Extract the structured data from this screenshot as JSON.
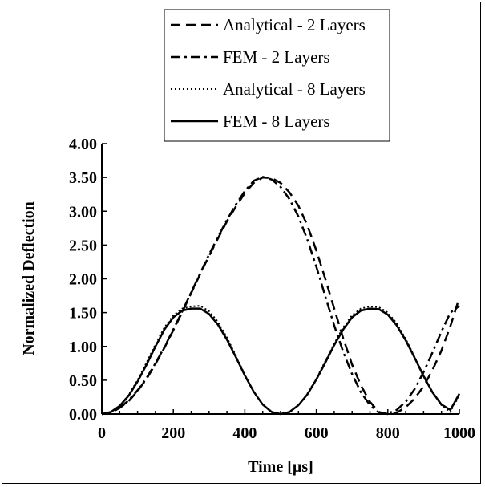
{
  "chart_data": {
    "type": "line",
    "xlabel": "Time [µs]",
    "ylabel": "Normalized Deflection",
    "xlim": [
      0,
      1000
    ],
    "ylim": [
      0,
      4
    ],
    "xticks": [
      "0",
      "200",
      "400",
      "600",
      "800",
      "1000"
    ],
    "yticks": [
      "0.00",
      "0.50",
      "1.00",
      "1.50",
      "2.00",
      "2.50",
      "3.00",
      "3.50",
      "4.00"
    ],
    "grid": false,
    "legend_position": "top-center",
    "series": [
      {
        "name": "Analytical - 2 Layers",
        "style": "dashed",
        "color": "#000000",
        "x": [
          0,
          25,
          50,
          75,
          100,
          125,
          150,
          175,
          200,
          225,
          250,
          275,
          300,
          325,
          350,
          375,
          400,
          425,
          450,
          475,
          500,
          525,
          550,
          575,
          600,
          625,
          650,
          675,
          700,
          725,
          750,
          775,
          800,
          825,
          850,
          875,
          900,
          925,
          950,
          975,
          1000
        ],
        "values": [
          0.0,
          0.02,
          0.09,
          0.19,
          0.34,
          0.52,
          0.74,
          0.98,
          1.24,
          1.51,
          1.79,
          2.07,
          2.34,
          2.6,
          2.85,
          3.07,
          3.27,
          3.42,
          3.5,
          3.49,
          3.42,
          3.28,
          3.08,
          2.79,
          2.42,
          2.0,
          1.56,
          1.12,
          0.73,
          0.42,
          0.18,
          0.03,
          0.0,
          0.02,
          0.1,
          0.23,
          0.41,
          0.65,
          0.94,
          1.3,
          1.72
        ]
      },
      {
        "name": "FEM - 2 Layers",
        "style": "dashdot",
        "color": "#000000",
        "x": [
          0,
          25,
          50,
          75,
          100,
          125,
          150,
          175,
          200,
          225,
          250,
          275,
          300,
          325,
          350,
          375,
          400,
          425,
          450,
          475,
          500,
          525,
          550,
          575,
          600,
          625,
          650,
          675,
          700,
          725,
          750,
          775,
          800,
          825,
          850,
          875,
          900,
          925,
          950,
          975,
          1000
        ],
        "values": [
          0.0,
          0.02,
          0.09,
          0.2,
          0.35,
          0.53,
          0.75,
          0.99,
          1.25,
          1.52,
          1.8,
          2.08,
          2.36,
          2.62,
          2.87,
          3.1,
          3.3,
          3.45,
          3.51,
          3.47,
          3.36,
          3.18,
          2.92,
          2.58,
          2.18,
          1.74,
          1.31,
          0.92,
          0.59,
          0.32,
          0.13,
          0.02,
          0.01,
          0.06,
          0.18,
          0.37,
          0.62,
          0.91,
          1.22,
          1.5,
          1.6
        ]
      },
      {
        "name": "Analytical - 8 Layers",
        "style": "dotted",
        "color": "#000000",
        "x": [
          0,
          25,
          50,
          75,
          100,
          125,
          150,
          175,
          200,
          225,
          250,
          275,
          300,
          325,
          350,
          375,
          400,
          425,
          450,
          475,
          500,
          525,
          550,
          575,
          600,
          625,
          650,
          675,
          700,
          725,
          750,
          775,
          800,
          825,
          850,
          875,
          900,
          925,
          950,
          975,
          1000
        ],
        "values": [
          0.0,
          0.03,
          0.12,
          0.28,
          0.5,
          0.76,
          1.03,
          1.28,
          1.46,
          1.56,
          1.59,
          1.6,
          1.52,
          1.36,
          1.13,
          0.86,
          0.58,
          0.33,
          0.14,
          0.03,
          0.0,
          0.03,
          0.13,
          0.3,
          0.52,
          0.78,
          1.04,
          1.28,
          1.46,
          1.56,
          1.59,
          1.58,
          1.5,
          1.34,
          1.11,
          0.84,
          0.57,
          0.32,
          0.13,
          0.03,
          0.28
        ]
      },
      {
        "name": "FEM - 8 Layers",
        "style": "solid",
        "color": "#000000",
        "x": [
          0,
          25,
          50,
          75,
          100,
          125,
          150,
          175,
          200,
          225,
          250,
          275,
          300,
          325,
          350,
          375,
          400,
          425,
          450,
          475,
          500,
          525,
          550,
          575,
          600,
          625,
          650,
          675,
          700,
          725,
          750,
          775,
          800,
          825,
          850,
          875,
          900,
          925,
          950,
          975,
          1000
        ],
        "values": [
          0.0,
          0.03,
          0.12,
          0.27,
          0.48,
          0.73,
          1.0,
          1.25,
          1.43,
          1.53,
          1.56,
          1.56,
          1.48,
          1.32,
          1.1,
          0.84,
          0.57,
          0.33,
          0.14,
          0.03,
          0.0,
          0.03,
          0.13,
          0.29,
          0.51,
          0.76,
          1.02,
          1.25,
          1.43,
          1.53,
          1.56,
          1.55,
          1.47,
          1.31,
          1.09,
          0.83,
          0.56,
          0.32,
          0.14,
          0.06,
          0.3
        ]
      }
    ]
  }
}
